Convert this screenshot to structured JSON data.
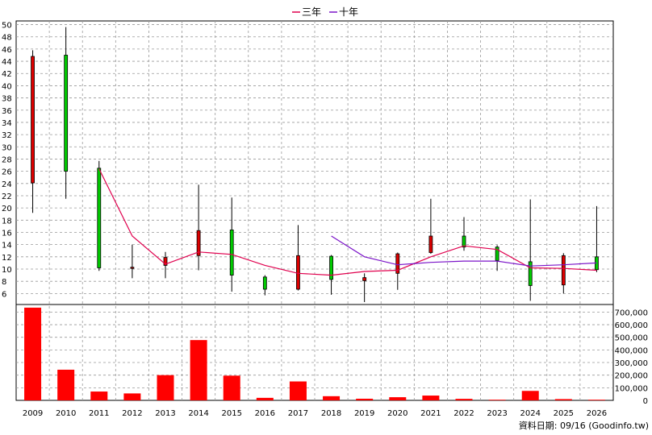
{
  "chart_data": {
    "type": "candlestick+bar",
    "categories": [
      "2009",
      "2010",
      "2011",
      "2012",
      "2013",
      "2014",
      "2015",
      "2016",
      "2017",
      "2018",
      "2019",
      "2020",
      "2021",
      "2022",
      "2023",
      "2024",
      "2025",
      "2026"
    ],
    "price_yaxis": {
      "ticks": [
        6,
        8,
        10,
        12,
        14,
        16,
        18,
        20,
        22,
        24,
        26,
        28,
        30,
        32,
        34,
        36,
        38,
        40,
        42,
        44,
        46,
        48,
        50
      ],
      "ylim": [
        4.2,
        50.6
      ]
    },
    "candles": [
      {
        "open": 24.1,
        "close": 44.8,
        "high": 45.8,
        "low": 19.2
      },
      {
        "open": 45.0,
        "close": 26.0,
        "high": 49.6,
        "low": 21.5
      },
      {
        "open": 26.5,
        "close": 10.2,
        "high": 27.7,
        "low": 9.7
      },
      {
        "open": 10.2,
        "close": 10.3,
        "high": 14.0,
        "low": 8.5
      },
      {
        "open": 10.6,
        "close": 11.9,
        "high": 12.8,
        "low": 8.5
      },
      {
        "open": 12.2,
        "close": 16.3,
        "high": 23.8,
        "low": 9.8
      },
      {
        "open": 16.4,
        "close": 9.0,
        "high": 21.7,
        "low": 6.3
      },
      {
        "open": 8.7,
        "close": 6.7,
        "high": 9.0,
        "low": 5.7
      },
      {
        "open": 6.7,
        "close": 12.2,
        "high": 17.2,
        "low": 6.5
      },
      {
        "open": 12.1,
        "close": 8.3,
        "high": 12.3,
        "low": 5.8
      },
      {
        "open": 8.1,
        "close": 8.6,
        "high": 9.3,
        "low": 4.6
      },
      {
        "open": 9.3,
        "close": 12.5,
        "high": 12.7,
        "low": 6.6
      },
      {
        "open": 12.7,
        "close": 15.4,
        "high": 21.5,
        "low": 12.5
      },
      {
        "open": 15.4,
        "close": 13.6,
        "high": 18.5,
        "low": 13.0
      },
      {
        "open": 13.6,
        "close": 11.4,
        "high": 13.9,
        "low": 9.7
      },
      {
        "open": 11.2,
        "close": 7.3,
        "high": 21.4,
        "low": 4.8
      },
      {
        "open": 7.4,
        "close": 12.2,
        "high": 12.6,
        "low": 6.0
      },
      {
        "open": 12.0,
        "close": 9.9,
        "high": 20.3,
        "low": 9.5
      }
    ],
    "series": [
      {
        "name": "三年",
        "color": "#e0004e",
        "values": [
          null,
          null,
          26.4,
          15.4,
          10.8,
          12.8,
          12.4,
          10.6,
          9.3,
          9.0,
          9.6,
          9.8,
          12.0,
          13.8,
          13.2,
          10.2,
          10.1,
          9.8
        ]
      },
      {
        "name": "十年",
        "color": "#7b14c8",
        "values": [
          null,
          null,
          null,
          null,
          null,
          null,
          null,
          null,
          null,
          15.4,
          12.0,
          10.7,
          11.1,
          11.3,
          11.3,
          10.5,
          10.7,
          11.0
        ]
      }
    ],
    "volume_yaxis": {
      "ticks": [
        0,
        100000,
        200000,
        300000,
        400000,
        500000,
        600000,
        700000
      ],
      "tick_labels": [
        "0",
        "100,000",
        "200,000",
        "300,000",
        "400,000",
        "500,000",
        "600,000",
        "700,000"
      ],
      "ylim": [
        0,
        760000
      ]
    },
    "volume": [
      735000,
      243000,
      70000,
      55000,
      200000,
      478000,
      196000,
      20000,
      150000,
      33000,
      13000,
      25000,
      38000,
      12000,
      5000,
      75000,
      10000,
      5000
    ],
    "volume_color": "#ff0000",
    "up_color": "#dd0000",
    "down_color": "#00cc00",
    "legend_position": "top-center",
    "grid": true
  },
  "legend": [
    "三年",
    "十年"
  ],
  "footer_note": "資料日期: 09/16 (Goodinfo.tw)"
}
